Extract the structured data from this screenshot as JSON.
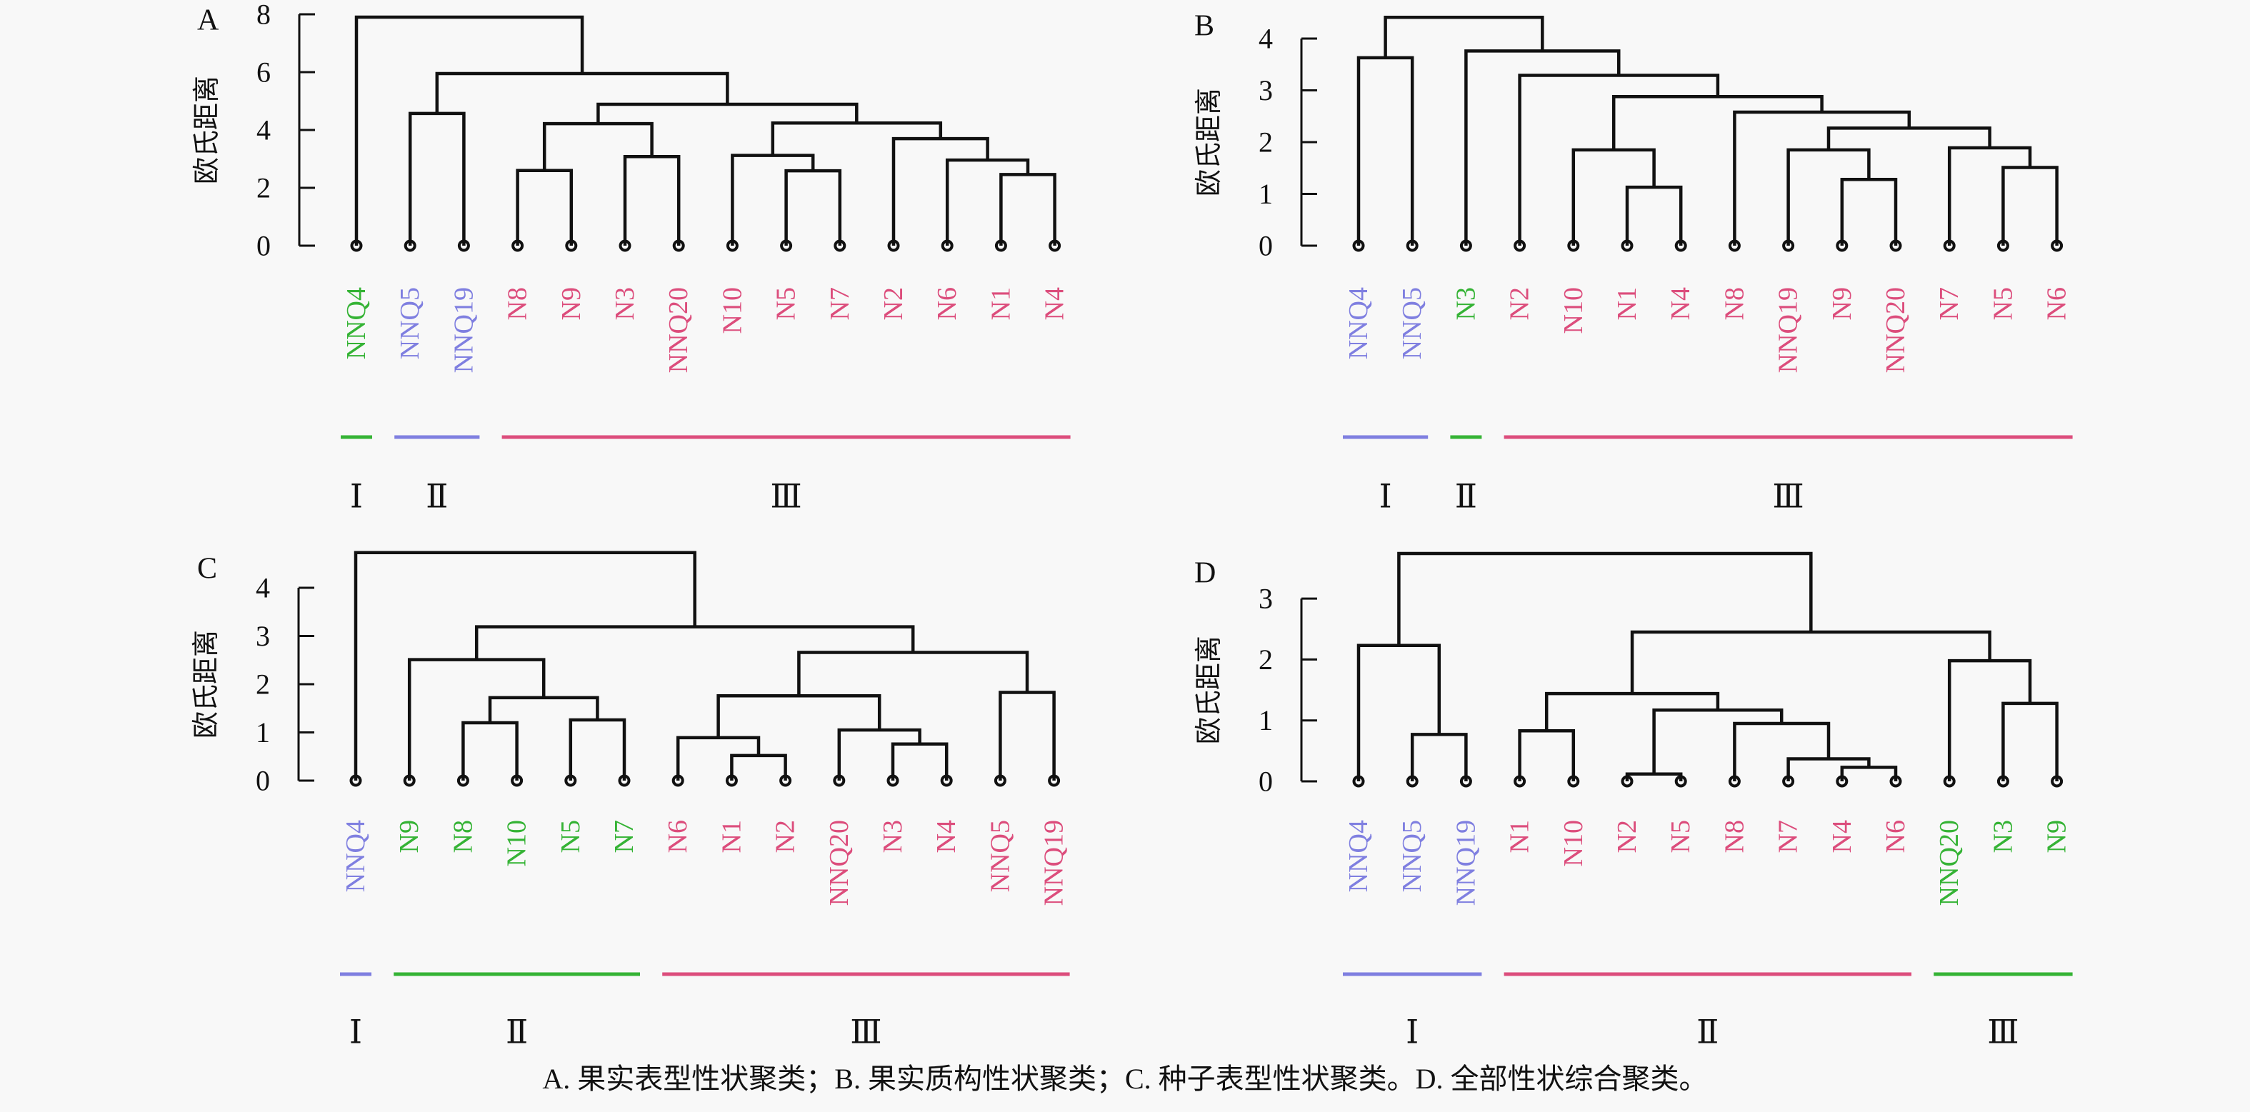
{
  "colors": {
    "green": "#35b335",
    "blue": "#7f7fe0",
    "pink": "#dc4d7c",
    "line": "#111111"
  },
  "chart_data": [
    {
      "type": "dendrogram",
      "panel": "A",
      "ylabel": "欧氏距离",
      "yticks": [
        0,
        2,
        4,
        6,
        8
      ],
      "ylim": [
        0,
        8
      ],
      "leaves": [
        {
          "name": "NNQ4",
          "color": "green"
        },
        {
          "name": "NNQ5",
          "color": "blue"
        },
        {
          "name": "NNQ19",
          "color": "blue"
        },
        {
          "name": "N8",
          "color": "pink"
        },
        {
          "name": "N9",
          "color": "pink"
        },
        {
          "name": "N3",
          "color": "pink"
        },
        {
          "name": "NNQ20",
          "color": "pink"
        },
        {
          "name": "N10",
          "color": "pink"
        },
        {
          "name": "N5",
          "color": "pink"
        },
        {
          "name": "N7",
          "color": "pink"
        },
        {
          "name": "N2",
          "color": "pink"
        },
        {
          "name": "N6",
          "color": "pink"
        },
        {
          "name": "N1",
          "color": "pink"
        },
        {
          "name": "N4",
          "color": "pink"
        }
      ],
      "merges": [
        {
          "a": "N8",
          "b": "N9",
          "height": 2.6
        },
        {
          "a": "N3",
          "b": "NNQ20",
          "height": 3.08
        },
        {
          "a": "N5",
          "b": "N7",
          "height": 2.59
        },
        {
          "a": "N1",
          "b": "N4",
          "height": 2.46
        },
        {
          "a": "N6",
          "b": "N1+N4",
          "height": 2.96
        },
        {
          "a": "N10",
          "b": "N5+N7",
          "height": 3.12
        },
        {
          "a": "N2",
          "b": "N6+N1+N4",
          "height": 3.7
        },
        {
          "a": "N8+N9",
          "b": "N3+NNQ20",
          "height": 4.22
        },
        {
          "a": "N10+N5+N7",
          "b": "N2+N6+N1+N4",
          "height": 4.24
        },
        {
          "a": "NNQ5",
          "b": "NNQ19",
          "height": 4.57
        },
        {
          "a": "N8+N9+N3+NNQ20",
          "b": "N10+N5+N7+N2+N6+N1+N4",
          "height": 4.89
        },
        {
          "a": "NNQ5+NNQ19",
          "b": "N8+N9+N3+NNQ20+N10+N5+N7+N2+N6+N1+N4",
          "height": 5.95
        },
        {
          "a": "NNQ4",
          "b": "NNQ5+NNQ19+N8+N9+N3+NNQ20+N10+N5+N7+N2+N6+N1+N4",
          "height": 7.9
        }
      ],
      "clusters": [
        {
          "label": "Ⅰ",
          "from": 0,
          "to": 0,
          "color": "green"
        },
        {
          "label": "Ⅱ",
          "from": 1,
          "to": 2,
          "color": "blue"
        },
        {
          "label": "Ⅲ",
          "from": 3,
          "to": 13,
          "color": "pink"
        }
      ]
    },
    {
      "type": "dendrogram",
      "panel": "B",
      "ylabel": "欧氏距离",
      "yticks": [
        0,
        1,
        2,
        3,
        4
      ],
      "ylim": [
        0,
        4.4
      ],
      "leaves": [
        {
          "name": "NNQ4",
          "color": "blue"
        },
        {
          "name": "NNQ5",
          "color": "blue"
        },
        {
          "name": "N3",
          "color": "green"
        },
        {
          "name": "N2",
          "color": "pink"
        },
        {
          "name": "N10",
          "color": "pink"
        },
        {
          "name": "N1",
          "color": "pink"
        },
        {
          "name": "N4",
          "color": "pink"
        },
        {
          "name": "N8",
          "color": "pink"
        },
        {
          "name": "NNQ19",
          "color": "pink"
        },
        {
          "name": "N9",
          "color": "pink"
        },
        {
          "name": "NNQ20",
          "color": "pink"
        },
        {
          "name": "N7",
          "color": "pink"
        },
        {
          "name": "N5",
          "color": "pink"
        },
        {
          "name": "N6",
          "color": "pink"
        }
      ],
      "merges": [
        {
          "a": "N1",
          "b": "N4",
          "height": 1.13
        },
        {
          "a": "N9",
          "b": "NNQ20",
          "height": 1.28
        },
        {
          "a": "N5",
          "b": "N6",
          "height": 1.51
        },
        {
          "a": "N10",
          "b": "N1+N4",
          "height": 1.85
        },
        {
          "a": "NNQ19",
          "b": "N9+NNQ20",
          "height": 1.85
        },
        {
          "a": "N7",
          "b": "N5+N6",
          "height": 1.89
        },
        {
          "a": "NNQ19+N9+NNQ20",
          "b": "N7+N5+N6",
          "height": 2.27
        },
        {
          "a": "N8",
          "b": "NNQ19+N9+NNQ20+N7+N5+N6",
          "height": 2.58
        },
        {
          "a": "N10+N1+N4",
          "b": "N8+NNQ19+N9+NNQ20+N7+N5+N6",
          "height": 2.88
        },
        {
          "a": "N2",
          "b": "N10+N1+N4+N8+NNQ19+N9+NNQ20+N7+N5+N6",
          "height": 3.29
        },
        {
          "a": "NNQ4",
          "b": "NNQ5",
          "height": 3.63
        },
        {
          "a": "N3",
          "b": "N2+N10+N1+N4+N8+NNQ19+N9+NNQ20+N7+N5+N6",
          "height": 3.76
        },
        {
          "a": "NNQ4+NNQ5",
          "b": "N3+N2+N10+N1+N4+N8+NNQ19+N9+NNQ20+N7+N5+N6",
          "height": 4.41
        }
      ],
      "clusters": [
        {
          "label": "Ⅰ",
          "from": 0,
          "to": 1,
          "color": "blue"
        },
        {
          "label": "Ⅱ",
          "from": 2,
          "to": 2,
          "color": "green"
        },
        {
          "label": "Ⅲ",
          "from": 3,
          "to": 13,
          "color": "pink"
        }
      ]
    },
    {
      "type": "dendrogram",
      "panel": "C",
      "ylabel": "欧氏距离",
      "yticks": [
        0,
        1,
        2,
        3,
        4
      ],
      "ylim": [
        0,
        4.73
      ],
      "leaves": [
        {
          "name": "NNQ4",
          "color": "blue"
        },
        {
          "name": "N9",
          "color": "green"
        },
        {
          "name": "N8",
          "color": "green"
        },
        {
          "name": "N10",
          "color": "green"
        },
        {
          "name": "N5",
          "color": "green"
        },
        {
          "name": "N7",
          "color": "green"
        },
        {
          "name": "N6",
          "color": "pink"
        },
        {
          "name": "N1",
          "color": "pink"
        },
        {
          "name": "N2",
          "color": "pink"
        },
        {
          "name": "NNQ20",
          "color": "pink"
        },
        {
          "name": "N3",
          "color": "pink"
        },
        {
          "name": "N4",
          "color": "pink"
        },
        {
          "name": "NNQ5",
          "color": "pink"
        },
        {
          "name": "NNQ19",
          "color": "pink"
        }
      ],
      "merges": [
        {
          "a": "N1",
          "b": "N2",
          "height": 0.52
        },
        {
          "a": "N3",
          "b": "N4",
          "height": 0.76
        },
        {
          "a": "N6",
          "b": "N1+N2",
          "height": 0.89
        },
        {
          "a": "NNQ20",
          "b": "N3+N4",
          "height": 1.05
        },
        {
          "a": "N8",
          "b": "N10",
          "height": 1.2
        },
        {
          "a": "N5",
          "b": "N7",
          "height": 1.26
        },
        {
          "a": "N8+N10",
          "b": "N5+N7",
          "height": 1.72
        },
        {
          "a": "N6+N1+N2",
          "b": "NNQ20+N3+N4",
          "height": 1.76
        },
        {
          "a": "NNQ5",
          "b": "NNQ19",
          "height": 1.83
        },
        {
          "a": "N9",
          "b": "N8+N10+N5+N7",
          "height": 2.51
        },
        {
          "a": "N6+N1+N2+NNQ20+N3+N4",
          "b": "NNQ5+NNQ19",
          "height": 2.66
        },
        {
          "a": "N9+N8+N10+N5+N7",
          "b": "N6+N1+N2+NNQ20+N3+N4+NNQ5+NNQ19",
          "height": 3.19
        },
        {
          "a": "NNQ4",
          "b": "N9+N8+N10+N5+N7+N6+N1+N2+NNQ20+N3+N4+NNQ5+NNQ19",
          "height": 4.73
        }
      ],
      "clusters": [
        {
          "label": "Ⅰ",
          "from": 0,
          "to": 0,
          "color": "blue"
        },
        {
          "label": "Ⅱ",
          "from": 1,
          "to": 5,
          "color": "green"
        },
        {
          "label": "Ⅲ",
          "from": 6,
          "to": 13,
          "color": "pink"
        }
      ]
    },
    {
      "type": "dendrogram",
      "panel": "D",
      "ylabel": "欧氏距离",
      "yticks": [
        0,
        1,
        2,
        3
      ],
      "ylim": [
        0,
        3.74
      ],
      "leaves": [
        {
          "name": "NNQ4",
          "color": "blue"
        },
        {
          "name": "NNQ5",
          "color": "blue"
        },
        {
          "name": "NNQ19",
          "color": "blue"
        },
        {
          "name": "N1",
          "color": "pink"
        },
        {
          "name": "N10",
          "color": "pink"
        },
        {
          "name": "N2",
          "color": "pink"
        },
        {
          "name": "N5",
          "color": "pink"
        },
        {
          "name": "N8",
          "color": "pink"
        },
        {
          "name": "N7",
          "color": "pink"
        },
        {
          "name": "N4",
          "color": "pink"
        },
        {
          "name": "N6",
          "color": "pink"
        },
        {
          "name": "NNQ20",
          "color": "green"
        },
        {
          "name": "N3",
          "color": "green"
        },
        {
          "name": "N9",
          "color": "green"
        }
      ],
      "merges": [
        {
          "a": "N2",
          "b": "N5",
          "height": 0.12
        },
        {
          "a": "N4",
          "b": "N6",
          "height": 0.23
        },
        {
          "a": "N7",
          "b": "N4+N6",
          "height": 0.37
        },
        {
          "a": "NNQ5",
          "b": "NNQ19",
          "height": 0.77
        },
        {
          "a": "N1",
          "b": "N10",
          "height": 0.83
        },
        {
          "a": "N8",
          "b": "N7+N4+N6",
          "height": 0.95
        },
        {
          "a": "N2+N5",
          "b": "N8+N7+N4+N6",
          "height": 1.17
        },
        {
          "a": "N3",
          "b": "N9",
          "height": 1.28
        },
        {
          "a": "N1+N10",
          "b": "N2+N5+N8+N7+N4+N6",
          "height": 1.44
        },
        {
          "a": "NNQ20",
          "b": "N3+N9",
          "height": 1.98
        },
        {
          "a": "NNQ4",
          "b": "NNQ5+NNQ19",
          "height": 2.23
        },
        {
          "a": "N1+N10+N2+N5+N8+N7+N4+N6",
          "b": "NNQ20+N3+N9",
          "height": 2.45
        },
        {
          "a": "NNQ4+NNQ5+NNQ19",
          "b": "N1+N10+N2+N5+N8+N7+N4+N6+NNQ20+N3+N9",
          "height": 3.74
        }
      ],
      "clusters": [
        {
          "label": "Ⅰ",
          "from": 0,
          "to": 2,
          "color": "blue"
        },
        {
          "label": "Ⅱ",
          "from": 3,
          "to": 10,
          "color": "pink"
        },
        {
          "label": "Ⅲ",
          "from": 11,
          "to": 13,
          "color": "green"
        }
      ]
    }
  ],
  "caption": "A. 果实表型性状聚类；B. 果实质构性状聚类；C. 种子表型性状聚类。D. 全部性状综合聚类。"
}
